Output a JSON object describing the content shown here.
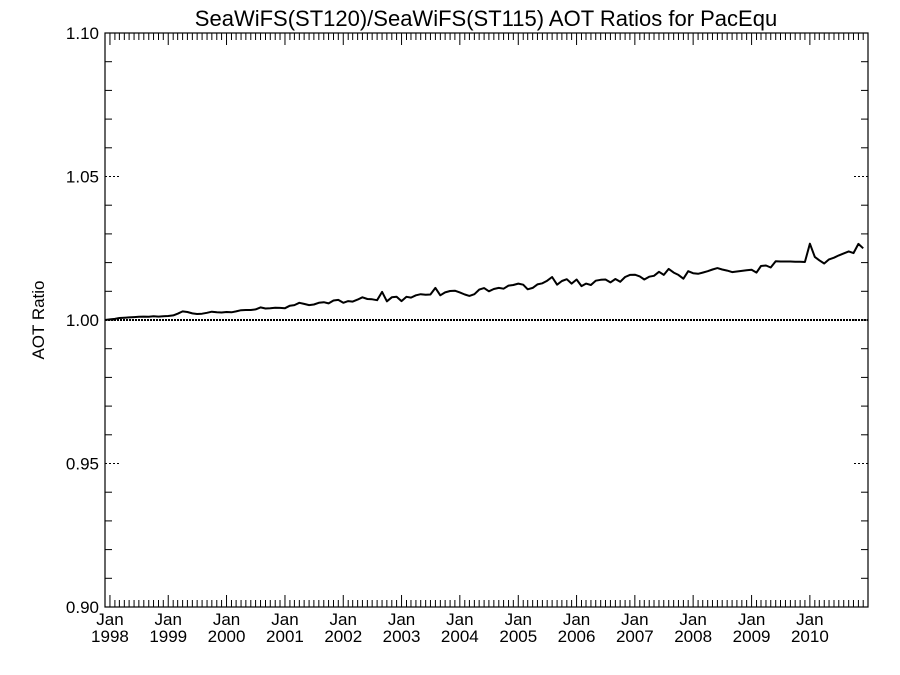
{
  "chart_data": {
    "type": "line",
    "title": "SeaWiFS(ST120)/SeaWiFS(ST115)  AOT Ratios for PacEqu",
    "xlabel": "",
    "ylabel": "AOT Ratio",
    "xlim": [
      "1997-12-01",
      "2010-12-31"
    ],
    "ylim": [
      0.9,
      1.1
    ],
    "y_ticks": [
      "0.90",
      "0.95",
      "1.00",
      "1.05",
      "1.10"
    ],
    "x_ticks": [
      {
        "date": "1998-01-01",
        "month": "Jan",
        "year": "1998"
      },
      {
        "date": "1999-01-01",
        "month": "Jan",
        "year": "1999"
      },
      {
        "date": "2000-01-01",
        "month": "Jan",
        "year": "2000"
      },
      {
        "date": "2001-01-01",
        "month": "Jan",
        "year": "2001"
      },
      {
        "date": "2002-01-01",
        "month": "Jan",
        "year": "2002"
      },
      {
        "date": "2003-01-01",
        "month": "Jan",
        "year": "2003"
      },
      {
        "date": "2004-01-01",
        "month": "Jan",
        "year": "2004"
      },
      {
        "date": "2005-01-01",
        "month": "Jan",
        "year": "2005"
      },
      {
        "date": "2006-01-01",
        "month": "Jan",
        "year": "2006"
      },
      {
        "date": "2007-01-01",
        "month": "Jan",
        "year": "2007"
      },
      {
        "date": "2008-01-01",
        "month": "Jan",
        "year": "2008"
      },
      {
        "date": "2009-01-01",
        "month": "Jan",
        "year": "2009"
      },
      {
        "date": "2010-01-01",
        "month": "Jan",
        "year": "2010"
      }
    ],
    "reference_line": 1.0,
    "grid": "dashed ticks at major y values",
    "series": [
      {
        "x": [
          "1997-12",
          "1998-01",
          "1998-02",
          "1998-03",
          "1998-04",
          "1998-05",
          "1998-06",
          "1998-07",
          "1998-08",
          "1998-09",
          "1998-10",
          "1998-11",
          "1998-12",
          "1999-01",
          "1999-02",
          "1999-03",
          "1999-04",
          "1999-05",
          "1999-06",
          "1999-07",
          "1999-08",
          "1999-09",
          "1999-10",
          "1999-11",
          "1999-12",
          "2000-01",
          "2000-02",
          "2000-03",
          "2000-04",
          "2000-05",
          "2000-06",
          "2000-07",
          "2000-08",
          "2000-09",
          "2000-10",
          "2000-11",
          "2000-12",
          "2001-01",
          "2001-02",
          "2001-03",
          "2001-04",
          "2001-05",
          "2001-06",
          "2001-07",
          "2001-08",
          "2001-09",
          "2001-10",
          "2001-11",
          "2001-12",
          "2002-01",
          "2002-02",
          "2002-03",
          "2002-04",
          "2002-05",
          "2002-06",
          "2002-07",
          "2002-08",
          "2002-09",
          "2002-10",
          "2002-11",
          "2002-12",
          "2003-01",
          "2003-02",
          "2003-03",
          "2003-04",
          "2003-05",
          "2003-06",
          "2003-07",
          "2003-08",
          "2003-09",
          "2003-10",
          "2003-11",
          "2003-12",
          "2004-01",
          "2004-02",
          "2004-03",
          "2004-04",
          "2004-05",
          "2004-06",
          "2004-07",
          "2004-08",
          "2004-09",
          "2004-10",
          "2004-11",
          "2004-12",
          "2005-01",
          "2005-02",
          "2005-03",
          "2005-04",
          "2005-05",
          "2005-06",
          "2005-07",
          "2005-08",
          "2005-09",
          "2005-10",
          "2005-11",
          "2005-12",
          "2006-01",
          "2006-02",
          "2006-03",
          "2006-04",
          "2006-05",
          "2006-06",
          "2006-07",
          "2006-08",
          "2006-09",
          "2006-10",
          "2006-11",
          "2006-12",
          "2007-01",
          "2007-02",
          "2007-03",
          "2007-04",
          "2007-05",
          "2007-06",
          "2007-07",
          "2007-08",
          "2007-09",
          "2007-10",
          "2007-11",
          "2007-12",
          "2008-01",
          "2008-02",
          "2008-03",
          "2008-04",
          "2008-05",
          "2008-06",
          "2008-07",
          "2008-08",
          "2008-09",
          "2008-10",
          "2008-11",
          "2008-12",
          "2009-01",
          "2009-02",
          "2009-03",
          "2009-04",
          "2009-05",
          "2009-06",
          "2009-07",
          "2009-08",
          "2009-09",
          "2009-10",
          "2009-11",
          "2009-12",
          "2010-01",
          "2010-02",
          "2010-03",
          "2010-04",
          "2010-05",
          "2010-06",
          "2010-07",
          "2010-08",
          "2010-09",
          "2010-10",
          "2010-11",
          "2010-12"
        ],
        "y": [
          1.0,
          1.0002,
          1.0004,
          1.0007,
          1.0008,
          1.0009,
          1.001,
          1.0011,
          1.0012,
          1.0011,
          1.0013,
          1.0012,
          1.0013,
          1.0014,
          1.0016,
          1.0022,
          1.003,
          1.0028,
          1.0023,
          1.0021,
          1.0022,
          1.0025,
          1.0029,
          1.0027,
          1.0026,
          1.0028,
          1.0027,
          1.003,
          1.0034,
          1.0035,
          1.0035,
          1.0037,
          1.0044,
          1.004,
          1.0041,
          1.0043,
          1.0042,
          1.0041,
          1.005,
          1.0052,
          1.006,
          1.0056,
          1.0052,
          1.0054,
          1.006,
          1.0062,
          1.0058,
          1.0068,
          1.007,
          1.006,
          1.0066,
          1.0064,
          1.0071,
          1.0079,
          1.0073,
          1.0072,
          1.0069,
          1.0098,
          1.0065,
          1.0079,
          1.0081,
          1.0066,
          1.0081,
          1.0078,
          1.0086,
          1.009,
          1.0088,
          1.0089,
          1.0112,
          1.0086,
          1.0096,
          1.0101,
          1.0102,
          1.0096,
          1.0089,
          1.0084,
          1.009,
          1.0106,
          1.0111,
          1.01,
          1.0108,
          1.0112,
          1.0109,
          1.012,
          1.0122,
          1.0127,
          1.0123,
          1.0107,
          1.0112,
          1.0124,
          1.0128,
          1.0137,
          1.015,
          1.0123,
          1.0136,
          1.0142,
          1.0127,
          1.0141,
          1.0118,
          1.0127,
          1.0122,
          1.0137,
          1.014,
          1.0141,
          1.0131,
          1.0143,
          1.0133,
          1.015,
          1.0157,
          1.0158,
          1.0152,
          1.0141,
          1.0151,
          1.0154,
          1.0168,
          1.0157,
          1.0178,
          1.0165,
          1.0157,
          1.0144,
          1.017,
          1.0163,
          1.0161,
          1.0165,
          1.017,
          1.0176,
          1.0181,
          1.0176,
          1.0172,
          1.0167,
          1.0169,
          1.0171,
          1.0173,
          1.0175,
          1.0165,
          1.0188,
          1.019,
          1.0183,
          1.0205,
          1.0204,
          1.0204,
          1.0204,
          1.0203,
          1.0203,
          1.0202,
          1.0266,
          1.022,
          1.0208,
          1.0197,
          1.0211,
          1.0217,
          1.0225,
          1.0232,
          1.0239,
          1.0233,
          1.0265,
          1.025
        ]
      }
    ]
  }
}
